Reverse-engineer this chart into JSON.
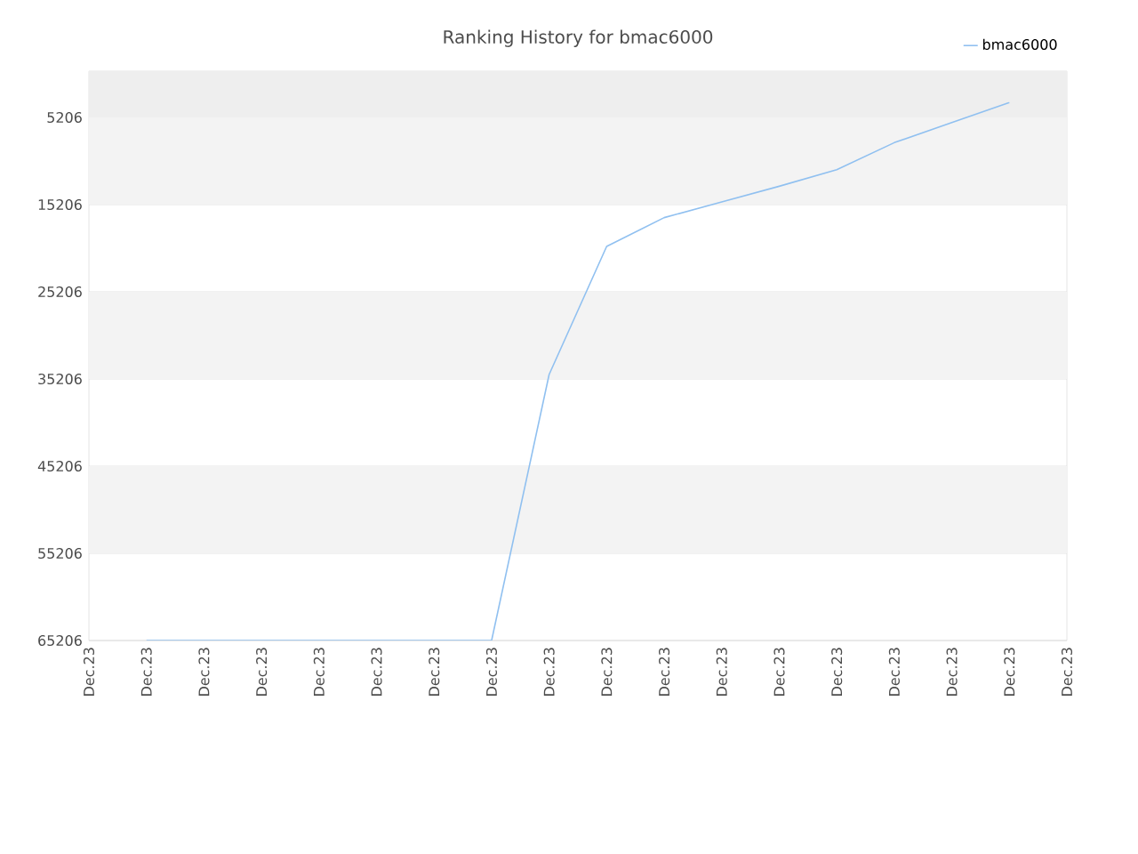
{
  "chart_data": {
    "type": "line",
    "title": "Ranking History for bmac6000",
    "categories": [
      "Dec.23",
      "Dec.23",
      "Dec.23",
      "Dec.23",
      "Dec.23",
      "Dec.23",
      "Dec.23",
      "Dec.23",
      "Dec.23",
      "Dec.23",
      "Dec.23",
      "Dec.23",
      "Dec.23",
      "Dec.23",
      "Dec.23",
      "Dec.23",
      "Dec.23",
      "Dec.23"
    ],
    "series": [
      {
        "name": "bmac6000",
        "color": "#90c0f0",
        "values": [
          null,
          65206,
          65206,
          65206,
          65206,
          65206,
          65206,
          65206,
          34700,
          20000,
          16700,
          14900,
          13100,
          11200,
          8100,
          5800,
          3500,
          null
        ]
      }
    ],
    "ylim": [
      65206,
      -100
    ],
    "yticks": [
      5206,
      15206,
      25206,
      35206,
      45206,
      55206,
      65206
    ],
    "bands": [
      {
        "axis": "y",
        "from": -100,
        "to": 5206,
        "color": "#eeeeee"
      },
      {
        "axis": "y",
        "from": 5206,
        "to": 15206,
        "color": "#f3f3f3"
      },
      {
        "axis": "y",
        "from": 25206,
        "to": 35206,
        "color": "#f3f3f3"
      },
      {
        "axis": "y",
        "from": 45206,
        "to": 55206,
        "color": "#f3f3f3"
      }
    ],
    "grid": "y",
    "legend": "top right",
    "marker": "none",
    "line_style": "solid"
  }
}
